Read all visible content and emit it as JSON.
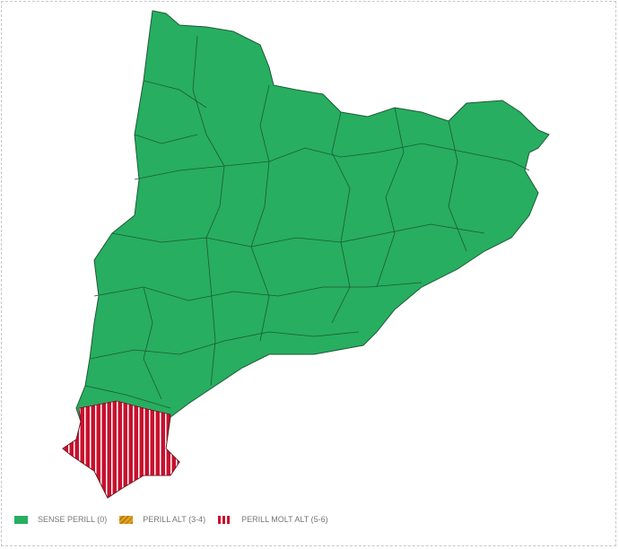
{
  "colors": {
    "safe": "#27ae60",
    "high": "#e0a020",
    "very_high": "#c8102e",
    "border": "#1e6b3c"
  },
  "legend": [
    {
      "label": "SENSE PERILL (0)",
      "icon": "solid-green-swatch"
    },
    {
      "label": "PERILL ALT (3-4)",
      "icon": "orange-hatched-swatch"
    },
    {
      "label": "PERILL MOLT ALT (5-6)",
      "icon": "red-striped-swatch"
    }
  ]
}
